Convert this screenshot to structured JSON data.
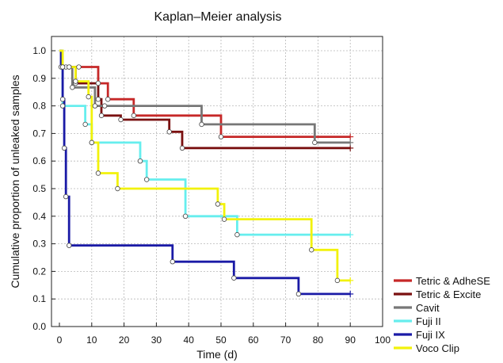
{
  "chart_data": {
    "type": "line",
    "title": "Kaplan–Meier analysis",
    "xlabel": "Time (d)",
    "ylabel": "Cumulative proportion of unleaked samples",
    "xlim": [
      0,
      100
    ],
    "ylim": [
      0,
      1.0
    ],
    "xticks": [
      "0",
      "10",
      "20",
      "30",
      "40",
      "50",
      "60",
      "70",
      "80",
      "90",
      "100"
    ],
    "yticks": [
      "0.0",
      "0.1",
      "0.2",
      "0.3",
      "0.4",
      "0.5",
      "0.6",
      "0.7",
      "0.8",
      "0.9",
      "1.0"
    ],
    "grid": true,
    "legend_position": "right",
    "series": [
      {
        "name": "Tetric & AdheSE",
        "color": "#c62828",
        "start": 1.0,
        "x": [
          1,
          3,
          6,
          12,
          15,
          23,
          50,
          90
        ],
        "y": [
          0.941,
          0.941,
          0.941,
          0.882,
          0.824,
          0.765,
          0.688,
          0.688
        ]
      },
      {
        "name": "Tetric & Excite",
        "color": "#7a1010",
        "start": 1.0,
        "x": [
          1,
          2,
          5,
          12,
          13,
          19,
          34,
          38,
          90
        ],
        "y": [
          0.941,
          0.941,
          0.882,
          0.824,
          0.765,
          0.75,
          0.706,
          0.647,
          0.647
        ]
      },
      {
        "name": "Cavit",
        "color": "#777777",
        "start": 1.0,
        "x": [
          1,
          3,
          4,
          11,
          14,
          44,
          79,
          90
        ],
        "y": [
          0.941,
          0.941,
          0.867,
          0.8,
          0.8,
          0.733,
          0.667,
          0.667
        ]
      },
      {
        "name": "Fuji II",
        "color": "#66eeee",
        "start": 1.0,
        "x": [
          1,
          8,
          10,
          25,
          27,
          39,
          55,
          90
        ],
        "y": [
          0.8,
          0.733,
          0.667,
          0.6,
          0.533,
          0.4,
          0.333,
          0.333
        ]
      },
      {
        "name": "Fuji IX",
        "color": "#1a1aa6",
        "start": 1.0,
        "x": [
          0.5,
          1,
          1.5,
          2,
          3,
          35,
          54,
          74,
          90
        ],
        "y": [
          0.941,
          0.824,
          0.647,
          0.471,
          0.294,
          0.235,
          0.176,
          0.118,
          0.118
        ]
      },
      {
        "name": "Voco Clip",
        "color": "#f2f20a",
        "start": 1.0,
        "x": [
          1,
          5,
          9,
          10,
          12,
          18,
          49,
          51,
          78,
          86,
          90
        ],
        "y": [
          0.941,
          0.889,
          0.833,
          0.667,
          0.556,
          0.5,
          0.444,
          0.389,
          0.278,
          0.167,
          0.167
        ]
      }
    ]
  }
}
